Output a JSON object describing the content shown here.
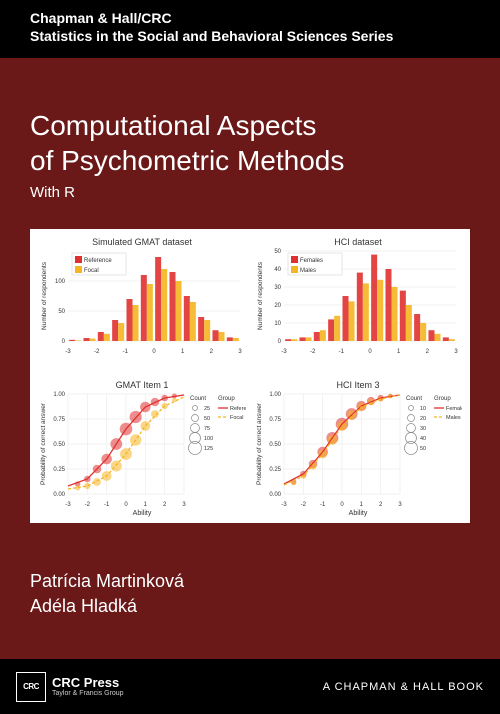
{
  "header": {
    "publisher": "Chapman & Hall/CRC",
    "series": "Statistics in the Social and Behavioral Sciences Series"
  },
  "title": {
    "line1": "Computational Aspects",
    "line2": "of Psychometric Methods",
    "subtitle": "With R"
  },
  "authors": {
    "a1": "Patrícia Martinková",
    "a2": "Adéla Hladká"
  },
  "footer": {
    "crc_mark": "CRC",
    "crc_press": "CRC Press",
    "tf_line1": "Taylor & Francis Group",
    "chapman": "A CHAPMAN & HALL BOOK"
  },
  "colors": {
    "cover_bg": "#6a1818",
    "band_bg": "#000000",
    "reference": "#e03030",
    "focal": "#f5b520",
    "grid": "#e5e5e5",
    "axis": "#555555",
    "text": "#333333"
  },
  "charts": {
    "hist_gmat": {
      "type": "grouped-histogram",
      "title": "Simulated GMAT dataset",
      "ylabel": "Number of respondents",
      "legend": {
        "items": [
          "Reference",
          "Focal"
        ],
        "colors": [
          "#e03030",
          "#f5b520"
        ]
      },
      "xlim": [
        -3,
        3
      ],
      "ylim": [
        0,
        150
      ],
      "yticks": [
        0,
        50,
        100
      ],
      "bins": [
        -3,
        -2.5,
        -2,
        -1.5,
        -1,
        -0.5,
        0,
        0.5,
        1,
        1.5,
        2,
        2.5,
        3
      ],
      "series": {
        "Reference": [
          2,
          5,
          15,
          35,
          70,
          110,
          140,
          115,
          75,
          40,
          18,
          6
        ],
        "Focal": [
          1,
          4,
          12,
          30,
          60,
          95,
          120,
          100,
          65,
          35,
          15,
          5
        ]
      }
    },
    "hist_hci": {
      "type": "grouped-histogram",
      "title": "HCI dataset",
      "ylabel": "Number of respondents",
      "legend": {
        "items": [
          "Females",
          "Males"
        ],
        "colors": [
          "#e03030",
          "#f5b520"
        ]
      },
      "xlim": [
        -3,
        3
      ],
      "ylim": [
        0,
        50
      ],
      "yticks": [
        0,
        10,
        20,
        30,
        40,
        50
      ],
      "bins": [
        -3,
        -2.5,
        -2,
        -1.5,
        -1,
        -0.5,
        0,
        0.5,
        1,
        1.5,
        2,
        2.5,
        3
      ],
      "series": {
        "Females": [
          1,
          2,
          5,
          12,
          25,
          38,
          48,
          40,
          28,
          15,
          6,
          2
        ],
        "Males": [
          1,
          2,
          6,
          14,
          22,
          32,
          34,
          30,
          20,
          10,
          4,
          1
        ]
      }
    },
    "icc_gmat": {
      "type": "icc-scatter",
      "title": "GMAT Item 1",
      "xlabel": "Ability",
      "ylabel": "Probability of correct answer",
      "xlim": [
        -3,
        3
      ],
      "xticks": [
        -3,
        -2,
        -1,
        0,
        1,
        2,
        3
      ],
      "ylim": [
        0,
        1
      ],
      "yticks": [
        0,
        0.25,
        0.5,
        0.75,
        1
      ],
      "count_legend": {
        "label": "Count",
        "sizes": [
          25,
          50,
          75,
          100,
          125
        ]
      },
      "group_legend": {
        "label": "Group",
        "items": [
          "Reference",
          "Focal"
        ],
        "colors": [
          "#e03030",
          "#f5b520"
        ]
      },
      "curves": {
        "Reference": [
          [
            -3,
            0.08
          ],
          [
            -2,
            0.15
          ],
          [
            -1,
            0.35
          ],
          [
            0,
            0.65
          ],
          [
            1,
            0.87
          ],
          [
            2,
            0.96
          ],
          [
            3,
            0.99
          ]
        ],
        "Focal": [
          [
            -3,
            0.05
          ],
          [
            -2,
            0.08
          ],
          [
            -1,
            0.18
          ],
          [
            0,
            0.4
          ],
          [
            1,
            0.68
          ],
          [
            2,
            0.88
          ],
          [
            3,
            0.97
          ]
        ]
      },
      "points": {
        "Reference": [
          [
            -2.5,
            0.1,
            30
          ],
          [
            -2,
            0.15,
            45
          ],
          [
            -1.5,
            0.25,
            70
          ],
          [
            -1,
            0.35,
            95
          ],
          [
            -0.5,
            0.5,
            110
          ],
          [
            0,
            0.65,
            120
          ],
          [
            0.5,
            0.77,
            115
          ],
          [
            1,
            0.87,
            95
          ],
          [
            1.5,
            0.92,
            70
          ],
          [
            2,
            0.96,
            45
          ],
          [
            2.5,
            0.98,
            25
          ]
        ],
        "Focal": [
          [
            -2.5,
            0.06,
            25
          ],
          [
            -2,
            0.08,
            40
          ],
          [
            -1.5,
            0.12,
            60
          ],
          [
            -1,
            0.18,
            85
          ],
          [
            -0.5,
            0.28,
            100
          ],
          [
            0,
            0.4,
            110
          ],
          [
            0.5,
            0.54,
            105
          ],
          [
            1,
            0.68,
            85
          ],
          [
            1.5,
            0.8,
            60
          ],
          [
            2,
            0.88,
            40
          ],
          [
            2.5,
            0.94,
            22
          ]
        ]
      }
    },
    "icc_hci": {
      "type": "icc-scatter",
      "title": "HCI Item 3",
      "xlabel": "Ability",
      "ylabel": "Probability of correct answer",
      "xlim": [
        -3,
        3
      ],
      "xticks": [
        -3,
        -2,
        -1,
        0,
        1,
        2,
        3
      ],
      "ylim": [
        0,
        1
      ],
      "yticks": [
        0,
        0.25,
        0.5,
        0.75,
        1
      ],
      "count_legend": {
        "label": "Count",
        "sizes": [
          10,
          20,
          30,
          40,
          50
        ]
      },
      "group_legend": {
        "label": "Group",
        "items": [
          "Females",
          "Males"
        ],
        "colors": [
          "#e03030",
          "#f5b520"
        ]
      },
      "curves": {
        "Females": [
          [
            -3,
            0.1
          ],
          [
            -2,
            0.2
          ],
          [
            -1,
            0.42
          ],
          [
            0,
            0.7
          ],
          [
            1,
            0.88
          ],
          [
            2,
            0.96
          ],
          [
            3,
            0.99
          ]
        ],
        "Males": [
          [
            -3,
            0.09
          ],
          [
            -2,
            0.18
          ],
          [
            -1,
            0.4
          ],
          [
            0,
            0.68
          ],
          [
            1,
            0.87
          ],
          [
            2,
            0.95
          ],
          [
            3,
            0.99
          ]
        ]
      },
      "points": {
        "Females": [
          [
            -2.5,
            0.12,
            12
          ],
          [
            -2,
            0.2,
            18
          ],
          [
            -1.5,
            0.3,
            28
          ],
          [
            -1,
            0.42,
            38
          ],
          [
            -0.5,
            0.56,
            45
          ],
          [
            0,
            0.7,
            48
          ],
          [
            0.5,
            0.8,
            44
          ],
          [
            1,
            0.88,
            36
          ],
          [
            1.5,
            0.93,
            26
          ],
          [
            2,
            0.96,
            16
          ],
          [
            2.5,
            0.98,
            8
          ]
        ],
        "Males": [
          [
            -2.5,
            0.11,
            10
          ],
          [
            -2,
            0.18,
            15
          ],
          [
            -1.5,
            0.28,
            22
          ],
          [
            -1,
            0.4,
            30
          ],
          [
            -0.5,
            0.54,
            34
          ],
          [
            0,
            0.68,
            35
          ],
          [
            0.5,
            0.79,
            32
          ],
          [
            1,
            0.87,
            26
          ],
          [
            1.5,
            0.92,
            18
          ],
          [
            2,
            0.95,
            12
          ],
          [
            2.5,
            0.98,
            6
          ]
        ]
      }
    }
  }
}
